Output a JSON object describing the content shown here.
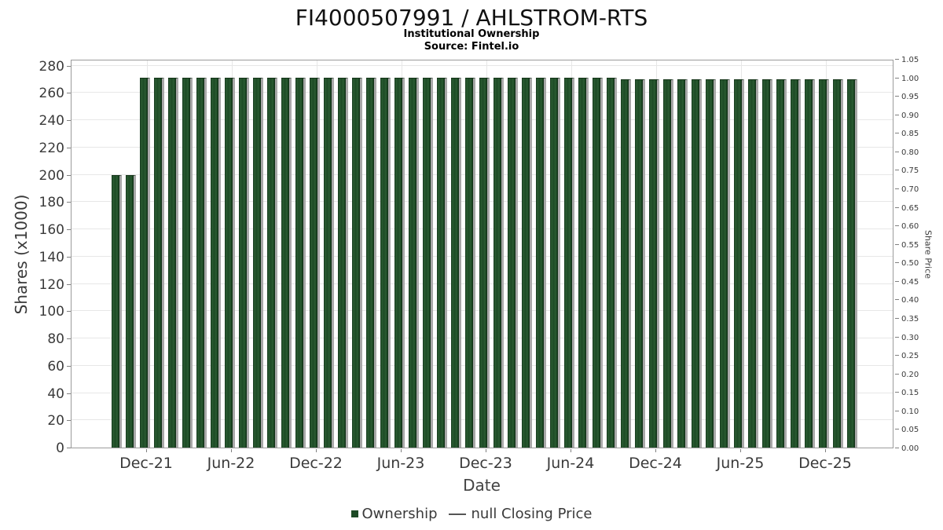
{
  "header": {
    "title": "FI4000507991 / AHLSTROM-RTS",
    "subtitle": "Institutional Ownership",
    "source": "Source: Fintel.io"
  },
  "legend": {
    "ownership_label": "Ownership",
    "price_label": "null Closing Price"
  },
  "colors": {
    "bar_green": "#1d4a25",
    "bar_shadow": "#a8a8a8",
    "grid": "#e7e7e7",
    "axis": "#9b9b9b",
    "text": "#3a3a3a"
  },
  "chart_data": {
    "type": "bar",
    "title": "FI4000507991 / AHLSTROM-RTS",
    "subtitle": "Institutional Ownership",
    "source": "Source: Fintel.io",
    "xlabel": "Date",
    "ylabel_left": "Shares (x1000)",
    "ylabel_right": "Share Price",
    "grid": true,
    "legend_position": "bottom",
    "ylim_left": [
      0,
      285
    ],
    "ylim_right": [
      0.0,
      1.05
    ],
    "y_ticks_left": [
      0,
      20,
      40,
      60,
      80,
      100,
      120,
      140,
      160,
      180,
      200,
      220,
      240,
      260,
      280
    ],
    "y_ticks_right": [
      "0.00",
      "0.05",
      "0.10",
      "0.15",
      "0.20",
      "0.25",
      "0.30",
      "0.35",
      "0.40",
      "0.45",
      "0.50",
      "0.55",
      "0.60",
      "0.65",
      "0.70",
      "0.75",
      "0.80",
      "0.85",
      "0.90",
      "0.95",
      "1.00",
      "1.05"
    ],
    "x_ticks": [
      "Dec-21",
      "Jun-22",
      "Dec-22",
      "Jun-23",
      "Dec-23",
      "Jun-24",
      "Dec-24",
      "Jun-25",
      "Dec-25"
    ],
    "x": [
      "Oct-21",
      "Nov-21",
      "Dec-21",
      "Jan-22",
      "Feb-22",
      "Mar-22",
      "Apr-22",
      "May-22",
      "Jun-22",
      "Jul-22",
      "Aug-22",
      "Sep-22",
      "Oct-22",
      "Nov-22",
      "Dec-22",
      "Jan-23",
      "Feb-23",
      "Mar-23",
      "Apr-23",
      "May-23",
      "Jun-23",
      "Jul-23",
      "Aug-23",
      "Sep-23",
      "Oct-23",
      "Nov-23",
      "Dec-23",
      "Jan-24",
      "Feb-24",
      "Mar-24",
      "Apr-24",
      "May-24",
      "Jun-24",
      "Jul-24",
      "Aug-24",
      "Sep-24",
      "Oct-24",
      "Nov-24",
      "Dec-24",
      "Jan-25",
      "Feb-25",
      "Mar-25",
      "Apr-25",
      "May-25",
      "Jun-25",
      "Jul-25",
      "Aug-25",
      "Sep-25",
      "Oct-25",
      "Nov-25",
      "Dec-25",
      "Jan-26",
      "Feb-26"
    ],
    "series": [
      {
        "name": "Ownership",
        "units": "shares x1000",
        "values": [
          200,
          200,
          271,
          271,
          271,
          271,
          271,
          271,
          271,
          271,
          271,
          271,
          271,
          271,
          271,
          271,
          271,
          271,
          271,
          271,
          271,
          271,
          271,
          271,
          271,
          271,
          271,
          271,
          271,
          271,
          271,
          271,
          271,
          271,
          271,
          271,
          270,
          270,
          270,
          270,
          270,
          270,
          270,
          270,
          270,
          270,
          270,
          270,
          270,
          270,
          270,
          270,
          270
        ]
      },
      {
        "name": "null Closing Price",
        "units": "price",
        "values": []
      }
    ]
  }
}
